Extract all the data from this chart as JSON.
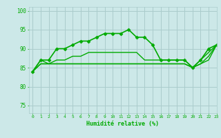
{
  "xlabel": "Humidité relative (%)",
  "background_color": "#cce8e8",
  "grid_color": "#aacccc",
  "line_color": "#00aa00",
  "xlim": [
    -0.5,
    23
  ],
  "ylim": [
    73,
    101
  ],
  "yticks": [
    75,
    80,
    85,
    90,
    95,
    100
  ],
  "xticks": [
    0,
    1,
    2,
    3,
    4,
    5,
    6,
    7,
    8,
    9,
    10,
    11,
    12,
    13,
    14,
    15,
    16,
    17,
    18,
    19,
    20,
    21,
    22,
    23
  ],
  "series": [
    {
      "x": [
        0,
        1,
        2,
        3,
        4,
        5,
        6,
        7,
        8,
        9,
        10,
        11,
        12,
        13,
        14,
        15,
        16,
        17,
        18,
        19,
        20,
        21,
        22,
        23
      ],
      "y": [
        84,
        87,
        87,
        90,
        90,
        91,
        92,
        92,
        93,
        94,
        94,
        94,
        95,
        93,
        93,
        91,
        87,
        87,
        87,
        87,
        85,
        87,
        90,
        91
      ],
      "marker": "D",
      "markersize": 2.5,
      "linewidth": 1.2
    },
    {
      "x": [
        0,
        1,
        2,
        3,
        4,
        5,
        6,
        7,
        8,
        9,
        10,
        11,
        12,
        13,
        14,
        15,
        16,
        17,
        18,
        19,
        20,
        21,
        22,
        23
      ],
      "y": [
        84,
        87,
        86,
        87,
        87,
        88,
        88,
        89,
        89,
        89,
        89,
        89,
        89,
        89,
        87,
        87,
        87,
        87,
        87,
        87,
        85,
        87,
        89,
        91
      ],
      "marker": null,
      "markersize": 0,
      "linewidth": 1.0
    },
    {
      "x": [
        0,
        1,
        2,
        3,
        4,
        5,
        6,
        7,
        8,
        9,
        10,
        11,
        12,
        13,
        14,
        15,
        16,
        17,
        18,
        19,
        20,
        21,
        22,
        23
      ],
      "y": [
        84,
        86,
        86,
        86,
        86,
        86,
        86,
        86,
        86,
        86,
        86,
        86,
        86,
        86,
        86,
        86,
        86,
        86,
        86,
        86,
        85,
        86,
        88,
        91
      ],
      "marker": null,
      "markersize": 0,
      "linewidth": 1.0
    },
    {
      "x": [
        0,
        1,
        2,
        3,
        4,
        5,
        6,
        7,
        8,
        9,
        10,
        11,
        12,
        13,
        14,
        15,
        16,
        17,
        18,
        19,
        20,
        21,
        22,
        23
      ],
      "y": [
        84,
        86,
        86,
        86,
        86,
        86,
        86,
        86,
        86,
        86,
        86,
        86,
        86,
        86,
        86,
        86,
        86,
        86,
        86,
        86,
        85,
        86,
        87,
        91
      ],
      "marker": null,
      "markersize": 0,
      "linewidth": 1.0
    }
  ]
}
